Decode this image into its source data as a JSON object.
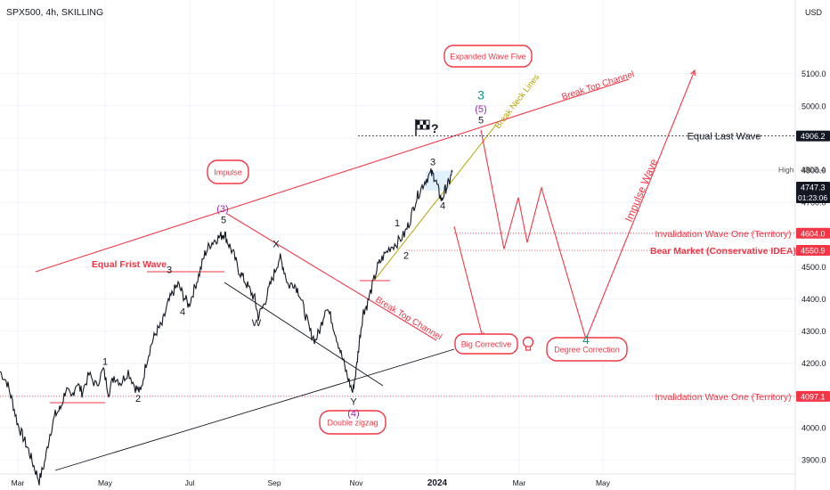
{
  "header": {
    "symbol": "SPX500, 4h, SKILLING",
    "currency": "USD"
  },
  "chart_data": {
    "type": "line",
    "ylim": [
      3820,
      5290
    ],
    "y_ticks": [
      3900,
      4000,
      4100,
      4200,
      4300,
      4400,
      4500,
      4600,
      4700,
      4800,
      4900,
      5000,
      5100
    ],
    "y_tick_labels": [
      "3900.0",
      "4000.0",
      "4100.0",
      "4200.0",
      "4300.0",
      "4400.0",
      "4500.0",
      "4600.0",
      "4700.0",
      "4800.0",
      "4900.0",
      "5000.0",
      "5100.0"
    ],
    "x_ticks": [
      {
        "t": 20,
        "label": "Mar"
      },
      {
        "t": 118,
        "label": "May"
      },
      {
        "t": 213,
        "label": "Jul"
      },
      {
        "t": 308,
        "label": "Sep"
      },
      {
        "t": 400,
        "label": "Nov"
      },
      {
        "t": 491,
        "label": "2024"
      },
      {
        "t": 583,
        "label": "Mar"
      },
      {
        "t": 677,
        "label": "May"
      }
    ],
    "price_path": [
      [
        0,
        4175
      ],
      [
        8,
        4140
      ],
      [
        14,
        4080
      ],
      [
        20,
        4010
      ],
      [
        26,
        3970
      ],
      [
        32,
        3930
      ],
      [
        38,
        3880
      ],
      [
        44,
        3835
      ],
      [
        50,
        3890
      ],
      [
        56,
        3980
      ],
      [
        62,
        4040
      ],
      [
        68,
        4060
      ],
      [
        74,
        4120
      ],
      [
        80,
        4090
      ],
      [
        86,
        4140
      ],
      [
        92,
        4110
      ],
      [
        100,
        4165
      ],
      [
        108,
        4130
      ],
      [
        116,
        4180
      ],
      [
        122,
        4110
      ],
      [
        128,
        4160
      ],
      [
        136,
        4140
      ],
      [
        144,
        4175
      ],
      [
        152,
        4125
      ],
      [
        158,
        4110
      ],
      [
        164,
        4200
      ],
      [
        170,
        4260
      ],
      [
        176,
        4300
      ],
      [
        182,
        4320
      ],
      [
        188,
        4380
      ],
      [
        194,
        4420
      ],
      [
        200,
        4445
      ],
      [
        206,
        4410
      ],
      [
        212,
        4380
      ],
      [
        218,
        4430
      ],
      [
        224,
        4480
      ],
      [
        230,
        4540
      ],
      [
        236,
        4570
      ],
      [
        242,
        4585
      ],
      [
        248,
        4595
      ],
      [
        252,
        4605
      ],
      [
        256,
        4575
      ],
      [
        262,
        4540
      ],
      [
        268,
        4490
      ],
      [
        274,
        4460
      ],
      [
        280,
        4430
      ],
      [
        286,
        4400
      ],
      [
        290,
        4345
      ],
      [
        296,
        4380
      ],
      [
        302,
        4430
      ],
      [
        308,
        4480
      ],
      [
        314,
        4530
      ],
      [
        318,
        4500
      ],
      [
        324,
        4440
      ],
      [
        330,
        4450
      ],
      [
        336,
        4420
      ],
      [
        342,
        4360
      ],
      [
        348,
        4300
      ],
      [
        354,
        4270
      ],
      [
        360,
        4310
      ],
      [
        366,
        4380
      ],
      [
        372,
        4340
      ],
      [
        378,
        4280
      ],
      [
        384,
        4220
      ],
      [
        390,
        4160
      ],
      [
        396,
        4110
      ],
      [
        400,
        4180
      ],
      [
        404,
        4280
      ],
      [
        408,
        4360
      ],
      [
        412,
        4380
      ],
      [
        418,
        4440
      ],
      [
        424,
        4500
      ],
      [
        430,
        4530
      ],
      [
        438,
        4560
      ],
      [
        446,
        4575
      ],
      [
        454,
        4600
      ],
      [
        460,
        4640
      ],
      [
        466,
        4700
      ],
      [
        472,
        4740
      ],
      [
        478,
        4770
      ],
      [
        484,
        4790
      ],
      [
        488,
        4780
      ],
      [
        492,
        4740
      ],
      [
        496,
        4705
      ],
      [
        500,
        4740
      ],
      [
        504,
        4760
      ],
      [
        508,
        4795
      ]
    ],
    "price_labels": [
      {
        "value": 4906.2,
        "label": "4906.2",
        "bg": "#131722"
      },
      {
        "value": 4803.4,
        "label": "4803.4",
        "bg": "none",
        "color": "#555555",
        "title": "High"
      },
      {
        "value": 4747.3,
        "label": "4747.3",
        "sub": "01:23:06",
        "bg": "#131722"
      },
      {
        "value": 4604.0,
        "label": "4604.0",
        "bg": "#f23645"
      },
      {
        "value": 4550.9,
        "label": "4550.9",
        "bg": "#f23645"
      },
      {
        "value": 4097.1,
        "label": "4097.1",
        "bg": "#f23645"
      }
    ],
    "annotations": {
      "equal_last_wave": "Equal Last Wave",
      "invalidation_1": "Invalidation Wave One (Territory)",
      "bear_market": "Bear Market (Conservative IDEA)",
      "invalidation_2": "Invalidation Wave One (Territory)",
      "expanded_wave_five": "Expanded Wave Five",
      "impulse": "Impulse",
      "big_corrective": "Big Corrective",
      "degree_correction": "Degree Correction",
      "double_zigzag": "Double zigzag",
      "equal_first_wave": "Equal Frist Wave",
      "break_top_channel_1": "Break Top Channel",
      "break_top_channel_2": "Break Top Channel",
      "break_neck_lines": "Break Neck Lines",
      "impulse_wave": "Impulse Wave"
    },
    "wave_labels": [
      {
        "text": "1",
        "t": 118,
        "v": 4195,
        "color": "#131722"
      },
      {
        "text": "2",
        "t": 155,
        "v": 4080,
        "color": "#131722"
      },
      {
        "text": "3",
        "t": 190,
        "v": 4480,
        "color": "#131722"
      },
      {
        "text": "4",
        "t": 205,
        "v": 4350,
        "color": "#131722"
      },
      {
        "text": "5",
        "t": 251,
        "v": 4635,
        "color": "#131722"
      },
      {
        "text": "(3)",
        "t": 250,
        "v": 4670,
        "color": "#9c27b0"
      },
      {
        "text": "X",
        "t": 310,
        "v": 4560,
        "color": "#131722"
      },
      {
        "text": "W",
        "t": 288,
        "v": 4315,
        "color": "#131722"
      },
      {
        "text": "Y",
        "t": 397,
        "v": 4070,
        "color": "#131722"
      },
      {
        "text": "(4)",
        "t": 397,
        "v": 4035,
        "color": "#9c27b0"
      },
      {
        "text": "1",
        "t": 446,
        "v": 4625,
        "color": "#131722"
      },
      {
        "text": "2",
        "t": 456,
        "v": 4525,
        "color": "#131722"
      },
      {
        "text": "3",
        "t": 486,
        "v": 4815,
        "color": "#131722"
      },
      {
        "text": "4",
        "t": 497,
        "v": 4680,
        "color": "#131722"
      },
      {
        "text": "5",
        "t": 540,
        "v": 4945,
        "color": "#131722"
      },
      {
        "text": "(5)",
        "t": 540,
        "v": 4980,
        "color": "#9c27b0"
      },
      {
        "text": "3",
        "t": 540,
        "v": 5020,
        "color": "#089981"
      },
      {
        "text": "4",
        "t": 658,
        "v": 4260,
        "color": "#089981"
      }
    ],
    "question_mark": "?",
    "projection_path": [
      [
        540,
        4925
      ],
      [
        566,
        4555
      ],
      [
        582,
        4715
      ],
      [
        592,
        4575
      ],
      [
        608,
        4745
      ],
      [
        658,
        4275
      ],
      [
        780,
        5110
      ]
    ],
    "bear_path": [
      [
        510,
        4625
      ],
      [
        542,
        4280
      ]
    ]
  },
  "colors": {
    "red": "#f23645",
    "black": "#131722",
    "green": "#089981",
    "purple": "#9c27b0",
    "olive": "#b5a300"
  }
}
